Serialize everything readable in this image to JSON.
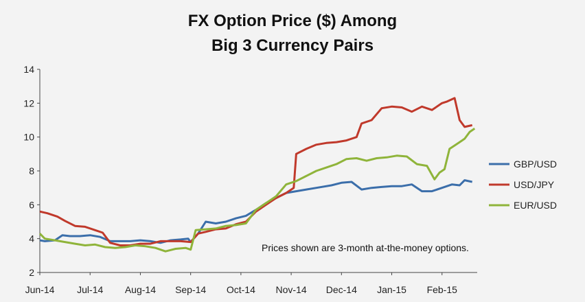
{
  "chart_data": {
    "type": "line",
    "title_lines": [
      "FX Option Price ($) Among",
      "Big 3 Currency Pairs"
    ],
    "xlabel": "",
    "ylabel": "",
    "ylim": [
      2,
      14
    ],
    "yticks": [
      "2",
      "4",
      "6",
      "8",
      "10",
      "12",
      "14"
    ],
    "xlim": [
      0,
      8.7
    ],
    "categories": [
      "Jun-14",
      "Jul-14",
      "Aug-14",
      "Sep-14",
      "Oct-14",
      "Nov-14",
      "Dec-14",
      "Jan-15",
      "Feb-15"
    ],
    "grid": false,
    "legend_position": "right",
    "annotation": "Prices shown are 3-month at-the-money options.",
    "series": [
      {
        "name": "GBP/USD",
        "color": "#3b6eaa",
        "x": [
          0,
          0.1,
          0.3,
          0.45,
          0.6,
          0.8,
          1.0,
          1.2,
          1.4,
          1.6,
          1.8,
          2.0,
          2.2,
          2.4,
          2.6,
          2.8,
          2.95,
          3.0,
          3.15,
          3.3,
          3.5,
          3.7,
          3.9,
          4.1,
          4.3,
          4.5,
          4.7,
          4.9,
          5.1,
          5.3,
          5.5,
          5.8,
          6.0,
          6.2,
          6.4,
          6.6,
          6.8,
          7.0,
          7.2,
          7.4,
          7.6,
          7.8,
          8.0,
          8.2,
          8.35,
          8.45,
          8.6
        ],
        "values": [
          3.9,
          3.85,
          3.9,
          4.2,
          4.15,
          4.15,
          4.2,
          4.1,
          3.85,
          3.85,
          3.85,
          3.9,
          3.85,
          3.75,
          3.9,
          3.95,
          4.0,
          3.8,
          4.3,
          5.0,
          4.9,
          5.0,
          5.2,
          5.35,
          5.7,
          6.1,
          6.4,
          6.7,
          6.8,
          6.9,
          7.0,
          7.15,
          7.3,
          7.35,
          6.9,
          7.0,
          7.05,
          7.1,
          7.1,
          7.2,
          6.8,
          6.8,
          7.0,
          7.2,
          7.15,
          7.45,
          7.35
        ]
      },
      {
        "name": "USD/JPY",
        "color": "#c0392b",
        "x": [
          0,
          0.15,
          0.35,
          0.5,
          0.7,
          0.9,
          1.1,
          1.25,
          1.4,
          1.6,
          1.8,
          2.0,
          2.2,
          2.4,
          2.6,
          2.8,
          3.0,
          3.15,
          3.3,
          3.5,
          3.7,
          3.9,
          4.1,
          4.3,
          4.5,
          4.7,
          4.9,
          5.05,
          5.1,
          5.3,
          5.5,
          5.7,
          5.9,
          6.1,
          6.3,
          6.4,
          6.6,
          6.8,
          7.0,
          7.2,
          7.4,
          7.6,
          7.8,
          8.0,
          8.1,
          8.25,
          8.35,
          8.45,
          8.6
        ],
        "values": [
          5.6,
          5.5,
          5.3,
          5.05,
          4.75,
          4.7,
          4.5,
          4.35,
          3.75,
          3.6,
          3.6,
          3.7,
          3.7,
          3.85,
          3.85,
          3.85,
          3.8,
          4.3,
          4.4,
          4.55,
          4.6,
          4.85,
          5.0,
          5.6,
          6.0,
          6.4,
          6.7,
          7.0,
          9.0,
          9.3,
          9.55,
          9.65,
          9.7,
          9.8,
          10.0,
          10.8,
          11.0,
          11.7,
          11.8,
          11.75,
          11.5,
          11.8,
          11.6,
          12.0,
          12.1,
          12.3,
          11.0,
          10.6,
          10.7
        ]
      },
      {
        "name": "EUR/USD",
        "color": "#8fb43a",
        "x": [
          0,
          0.1,
          0.3,
          0.5,
          0.7,
          0.9,
          1.1,
          1.3,
          1.5,
          1.7,
          1.9,
          2.1,
          2.3,
          2.5,
          2.7,
          2.9,
          3.0,
          3.1,
          3.3,
          3.5,
          3.7,
          3.9,
          4.1,
          4.3,
          4.5,
          4.7,
          4.9,
          5.1,
          5.3,
          5.5,
          5.7,
          5.9,
          6.1,
          6.3,
          6.5,
          6.7,
          6.9,
          7.1,
          7.3,
          7.5,
          7.7,
          7.85,
          7.95,
          8.05,
          8.15,
          8.25,
          8.35,
          8.45,
          8.55,
          8.65
        ],
        "values": [
          4.3,
          4.0,
          3.9,
          3.8,
          3.7,
          3.6,
          3.65,
          3.5,
          3.45,
          3.5,
          3.6,
          3.55,
          3.45,
          3.25,
          3.4,
          3.45,
          3.35,
          4.5,
          4.55,
          4.6,
          4.75,
          4.8,
          4.9,
          5.7,
          6.1,
          6.5,
          7.2,
          7.4,
          7.7,
          8.0,
          8.2,
          8.4,
          8.7,
          8.75,
          8.6,
          8.75,
          8.8,
          8.9,
          8.85,
          8.4,
          8.3,
          7.5,
          7.9,
          8.1,
          9.3,
          9.5,
          9.7,
          9.9,
          10.3,
          10.5
        ]
      }
    ]
  }
}
